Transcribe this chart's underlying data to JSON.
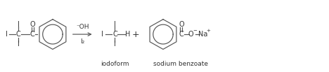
{
  "bg_color": "#ffffff",
  "line_color": "#555555",
  "text_color": "#333333",
  "figsize": [
    4.68,
    1.03
  ],
  "dpi": 100,
  "label_iodoform": "iodoform",
  "label_sodium_benzoate": "sodium benzoate",
  "reagent_top": "⁻OH",
  "reagent_bottom": "I₂",
  "minus_char": "−",
  "plus_char": "+"
}
